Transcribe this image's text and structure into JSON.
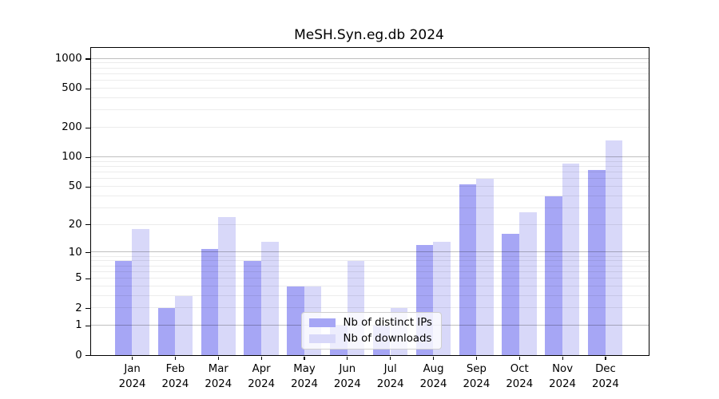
{
  "title": "MeSH.Syn.eg.db 2024",
  "chart_data": {
    "type": "bar",
    "title": "MeSH.Syn.eg.db 2024",
    "x_tick_months": [
      "Jan",
      "Feb",
      "Mar",
      "Apr",
      "May",
      "Jun",
      "Jul",
      "Aug",
      "Sep",
      "Oct",
      "Nov",
      "Dec"
    ],
    "x_tick_year": "2024",
    "series": [
      {
        "name": "Nb of distinct IPs",
        "color": "#a6a6f5",
        "values": [
          8,
          2,
          11,
          8,
          4,
          1,
          1,
          12,
          53,
          16,
          40,
          74
        ]
      },
      {
        "name": "Nb of downloads",
        "color": "#d8d8f9",
        "values": [
          18,
          3,
          24,
          13,
          4,
          8,
          2,
          13,
          60,
          27,
          87,
          150
        ]
      }
    ],
    "y_scale": "log10(1+x)",
    "ylim": [
      0,
      1300
    ],
    "y_ticks": [
      0,
      1,
      2,
      5,
      10,
      20,
      50,
      100,
      200,
      500,
      1000
    ],
    "y_major_gridlines": [
      1,
      10,
      100,
      1000
    ],
    "y_minor_gridlines": [
      2,
      3,
      4,
      5,
      6,
      7,
      8,
      9,
      20,
      30,
      40,
      50,
      60,
      70,
      80,
      90,
      200,
      300,
      400,
      500,
      600,
      700,
      800,
      900
    ],
    "grid": "horizontal-above-bars",
    "legend_position": "lower-center-inside",
    "xlabel": "",
    "ylabel": ""
  }
}
